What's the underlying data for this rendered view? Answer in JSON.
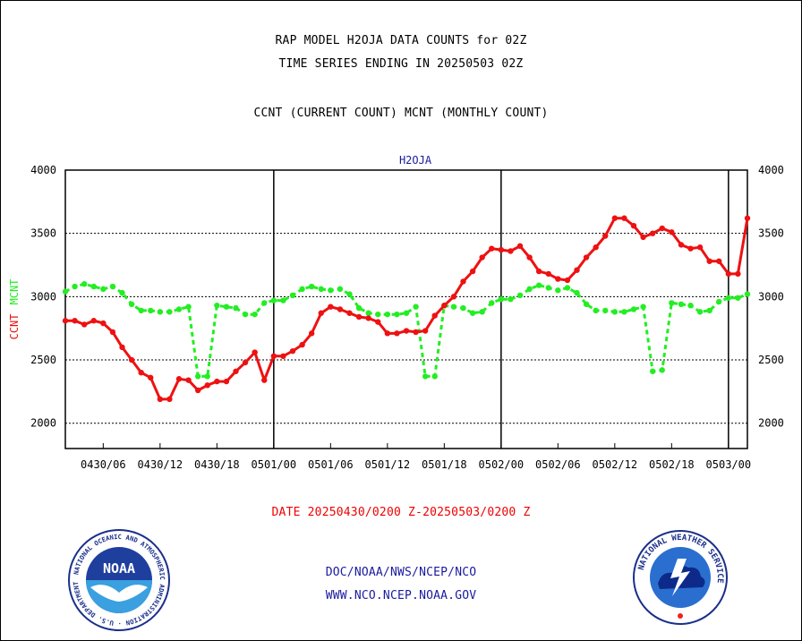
{
  "header": {
    "title1": "RAP MODEL H2OJA DATA COUNTS for 02Z",
    "title2": "TIME SERIES ENDING IN 20250503 02Z",
    "subtitle": "CCNT (CURRENT COUNT) MCNT (MONTHLY COUNT)"
  },
  "footer": {
    "date_range": "DATE 20250430/0200 Z-20250503/0200 Z",
    "org_line": "DOC/NOAA/NWS/NCEP/NCO",
    "url_line": "WWW.NCO.NCEP.NOAA.GOV"
  },
  "logos": {
    "noaa": {
      "center_text": "NOAA",
      "ring_text": "NATIONAL OCEANIC AND ATMOSPHERIC ADMINISTRATION · U.S. DEPARTMENT OF COMMERCE"
    },
    "nws": {
      "ring_text": "NATIONAL WEATHER SERVICE"
    }
  },
  "colors": {
    "ccnt": "#ee1111",
    "mcnt": "#22ee22",
    "axis": "#000000",
    "label_blue": "#1a1aa0"
  },
  "chart_data": {
    "type": "line",
    "title": "H2OJA",
    "ylabel_left": [
      "CCNT",
      "MCNT"
    ],
    "ylim": [
      1800,
      4000
    ],
    "yticks": [
      2000,
      2500,
      3000,
      3500,
      4000
    ],
    "grid": "horizontal dotted",
    "x_ticks": [
      "0430/06",
      "0430/12",
      "0430/18",
      "0501/00",
      "0501/06",
      "0501/12",
      "0501/18",
      "0502/00",
      "0502/06",
      "0502/12",
      "0502/18",
      "0503/00"
    ],
    "day_boundaries": [
      "0501/00",
      "0502/00",
      "0503/00"
    ],
    "x_start": "0430/02",
    "x_end": "0503/02",
    "x_step_hours": 1,
    "series": [
      {
        "name": "CCNT",
        "values": [
          2810,
          2810,
          2780,
          2810,
          2790,
          2720,
          2600,
          2500,
          2400,
          2360,
          2190,
          2190,
          2350,
          2340,
          2260,
          2300,
          2330,
          2330,
          2410,
          2480,
          2560,
          2340,
          2530,
          2530,
          2570,
          2620,
          2710,
          2870,
          2920,
          2900,
          2870,
          2840,
          2830,
          2800,
          2710,
          2710,
          2730,
          2720,
          2730,
          2850,
          2930,
          3000,
          3120,
          3200,
          3310,
          3380,
          3370,
          3360,
          3400,
          3310,
          3200,
          3180,
          3140,
          3130,
          3210,
          3310,
          3390,
          3480,
          3620,
          3620,
          3560,
          3470,
          3500,
          3540,
          3510,
          3410,
          3380,
          3390,
          3280,
          3280,
          3180,
          3180,
          3620
        ]
      },
      {
        "name": "MCNT",
        "values": [
          3040,
          3080,
          3100,
          3080,
          3060,
          3080,
          3030,
          2940,
          2890,
          2890,
          2880,
          2880,
          2900,
          2920,
          2370,
          2370,
          2930,
          2920,
          2910,
          2860,
          2860,
          2950,
          2970,
          2970,
          3010,
          3060,
          3080,
          3060,
          3050,
          3060,
          3020,
          2910,
          2870,
          2860,
          2860,
          2860,
          2870,
          2920,
          2370,
          2370,
          2930,
          2920,
          2910,
          2870,
          2880,
          2950,
          2980,
          2980,
          3010,
          3060,
          3090,
          3070,
          3050,
          3070,
          3030,
          2940,
          2890,
          2890,
          2880,
          2880,
          2900,
          2920,
          2410,
          2420,
          2950,
          2940,
          2930,
          2880,
          2890,
          2960,
          2990,
          2990,
          3020
        ]
      }
    ]
  }
}
